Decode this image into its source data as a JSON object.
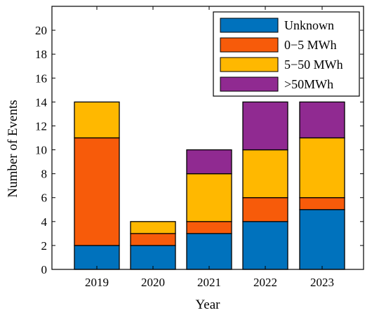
{
  "chart_data": {
    "type": "bar",
    "stacked": true,
    "categories": [
      "2019",
      "2020",
      "2021",
      "2022",
      "2023"
    ],
    "series": [
      {
        "name": "Unknown",
        "color": "#0072BD",
        "values": [
          2,
          2,
          3,
          4,
          5
        ]
      },
      {
        "name": "0−5 MWh",
        "color": "#F75B0A",
        "values": [
          9,
          1,
          1,
          2,
          1
        ]
      },
      {
        "name": "5−50 MWh",
        "color": "#FFB800",
        "values": [
          3,
          1,
          4,
          4,
          5
        ]
      },
      {
        "name": ">50MWh",
        "color": "#902A91",
        "values": [
          0,
          0,
          2,
          4,
          3
        ]
      }
    ],
    "xlabel": "Year",
    "ylabel": "Number of Events",
    "ylim": [
      0,
      22
    ],
    "yticks": [
      "0",
      "2",
      "4",
      "6",
      "8",
      "10",
      "12",
      "14",
      "16",
      "18",
      "20"
    ],
    "grid": false,
    "legend_position": "top-right"
  }
}
